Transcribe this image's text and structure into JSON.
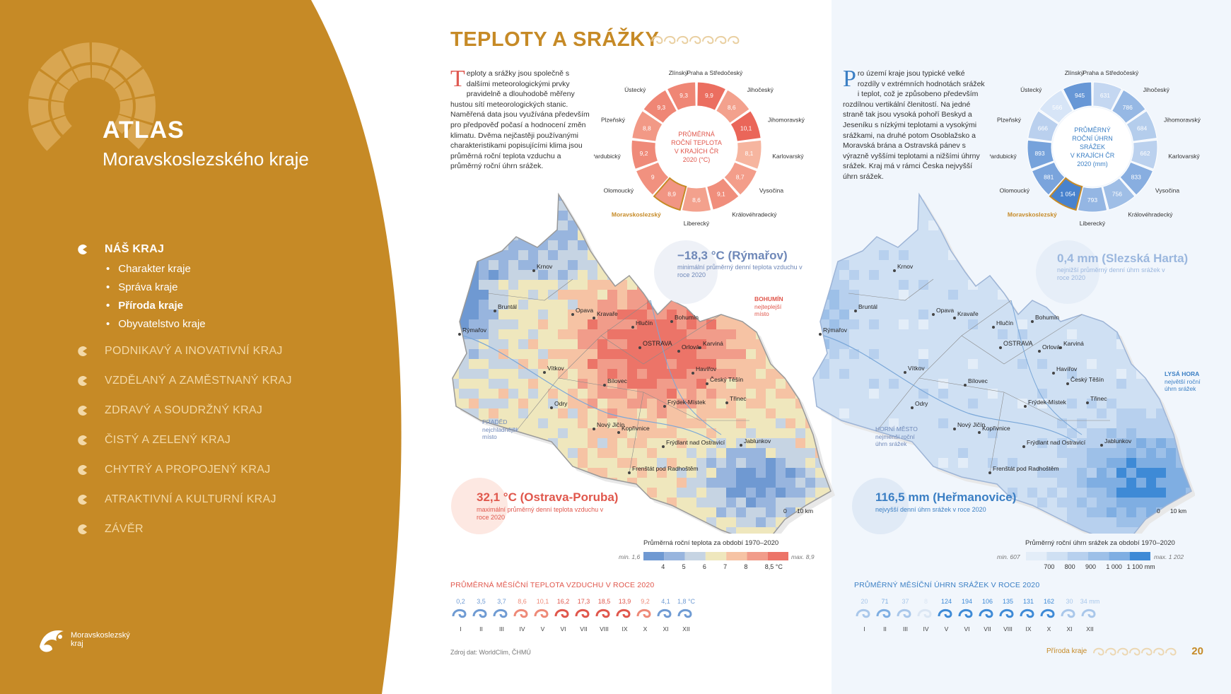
{
  "sidebar": {
    "title": "ATLAS",
    "subtitle": "Moravskoslezského kraje",
    "nav": [
      {
        "label": "NÁŠ KRAJ",
        "active": true
      },
      {
        "label": "PODNIKAVÝ A INOVATIVNÍ KRAJ"
      },
      {
        "label": "VZDĚLANÝ A ZAMĚSTNANÝ KRAJ"
      },
      {
        "label": "ZDRAVÝ A SOUDRŽNÝ KRAJ"
      },
      {
        "label": "ČISTÝ A ZELENÝ KRAJ"
      },
      {
        "label": "CHYTRÝ A PROPOJENÝ KRAJ"
      },
      {
        "label": "ATRAKTIVNÍ A KULTURNÍ KRAJ"
      },
      {
        "label": "ZÁVĚR"
      }
    ],
    "subnav": [
      "Charakter kraje",
      "Správa kraje",
      "Příroda kraje",
      "Obyvatelstvo kraje"
    ],
    "brand_line1": "Moravskoslezský",
    "brand_line2": "kraj",
    "color": "#c68a26"
  },
  "page": {
    "title": "TEPLOTY A SRÁŽKY",
    "intro_left_cap": "T",
    "intro_left": "eploty a srážky jsou společně s dalšími meteorologickými prvky pravidelně a dlouhodobě měřeny hustou sítí meteorologických stanic. Naměřená data jsou využívána především pro předpověď počasí a hodnocení změn klimatu. Dvěma nejčastěji používanými charakteristikami popisujícími klima jsou průměrná roční teplota vzduchu a průměrný roční úhrn srážek.",
    "intro_right_cap": "P",
    "intro_right": "ro území kraje jsou typické velké rozdíly v extrémních hodnotách srážek i teplot, což je způsobeno především rozdílnou vertikální členitostí. Na jedné straně tak jsou vysoká pohoří Beskyd a Jeseníku s nízkými teplotami a vysokými srážkami, na druhé potom Osoblažsko a Moravská brána a Ostravská pánev s výrazně vyššími teplotami a nižšími úhrny srážek. Kraj má v rámci Česka nejvyšší úhrn srážek.",
    "source": "Zdroj dat: WorldClim, ČHMÚ",
    "footer_label": "Příroda kraje",
    "page_number": "20"
  },
  "temp_donut": {
    "center": [
      "PRŮMĚRNÁ",
      "ROČNÍ TEPLOTA",
      "V KRAJÍCH ČR",
      "2020 (°C)"
    ],
    "regions": [
      {
        "name": "Praha a Středočeský",
        "value": "9,9"
      },
      {
        "name": "Jihočeský",
        "value": "8,6"
      },
      {
        "name": "Jihomoravský",
        "value": "10,1"
      },
      {
        "name": "Karlovarský",
        "value": "8,1"
      },
      {
        "name": "Vysočina",
        "value": "8,7"
      },
      {
        "name": "Královéhradecký",
        "value": "9,1"
      },
      {
        "name": "Liberecký",
        "value": "8,6"
      },
      {
        "name": "Moravskoslezský",
        "value": "8,9"
      },
      {
        "name": "Olomoucký",
        "value": "9"
      },
      {
        "name": "Pardubický",
        "value": "9,2"
      },
      {
        "name": "Plzeňský",
        "value": "8,8"
      },
      {
        "name": "Ústecký",
        "value": "9,3"
      },
      {
        "name": "Zlínský",
        "value": "9,3"
      }
    ]
  },
  "precip_donut": {
    "center": [
      "PRŮMĚRNÝ",
      "ROČNÍ ÚHRN",
      "SRÁŽEK",
      "V KRAJÍCH ČR",
      "2020 (mm)"
    ],
    "regions": [
      {
        "name": "Praha a Středočeský",
        "value": "631"
      },
      {
        "name": "Jihočeský",
        "value": "786"
      },
      {
        "name": "Jihomoravský",
        "value": "684"
      },
      {
        "name": "Karlovarský",
        "value": "662"
      },
      {
        "name": "Vysočina",
        "value": "833"
      },
      {
        "name": "Královéhradecký",
        "value": "756"
      },
      {
        "name": "Liberecký",
        "value": "793"
      },
      {
        "name": "Moravskoslezský",
        "value": "1 054"
      },
      {
        "name": "Olomoucký",
        "value": "881"
      },
      {
        "name": "Pardubický",
        "value": "893"
      },
      {
        "name": "Plzeňský",
        "value": "666"
      },
      {
        "name": "Ústecký",
        "value": "566"
      },
      {
        "name": "Zlínský",
        "value": "945"
      }
    ]
  },
  "temp_map": {
    "towns": [
      "Krnov",
      "Bruntál",
      "Rýmařov",
      "Opava",
      "Kravaře",
      "Hlučín",
      "Bohumín",
      "OSTRAVA",
      "Orlová",
      "Karviná",
      "Havířov",
      "Český Těšín",
      "Vítkov",
      "Bílovec",
      "Frýdek-Místek",
      "Třinec",
      "Odry",
      "Nový Jičín",
      "Kopřivnice",
      "Frýdlant nad Ostravicí",
      "Frenštát pod Radhoštěm",
      "Jablunkov"
    ],
    "min_value": "−18,3 °C (Rýmařov)",
    "min_note": "minimální průměrný denní teplota vzduchu v roce 2020",
    "max_value": "32,1 °C (Ostrava-Poruba)",
    "max_note": "maximální průměrný denní teplota vzduchu v roce 2020",
    "warm_title": "BOHUMÍN",
    "warm_note": "nejteplejší místo",
    "cold_title": "PRADĚD",
    "cold_note": "nejchladnější místo",
    "scale": "0      10 km",
    "legend_title": "Průměrná roční teplota za období 1970–2020",
    "legend_min": "min. 1,6",
    "legend_max": "max. 8,9",
    "legend_ticks": [
      "4",
      "5",
      "6",
      "7",
      "8",
      "8,5 °C"
    ],
    "legend_colors": [
      "#6f99d2",
      "#98b5de",
      "#c6d4e3",
      "#efe7bd",
      "#f6c3a4",
      "#f19c8a",
      "#ec7468"
    ]
  },
  "precip_map": {
    "towns": [
      "Krnov",
      "Bruntál",
      "Rýmařov",
      "Opava",
      "Kravaře",
      "Hlučín",
      "Bohumín",
      "OSTRAVA",
      "Orlová",
      "Karviná",
      "Havířov",
      "Český Těšín",
      "Vítkov",
      "Bílovec",
      "Frýdek-Místek",
      "Třinec",
      "Odry",
      "Nový Jičín",
      "Kopřivnice",
      "Frýdlant nad Ostravicí",
      "Frenštát pod Radhoštěm",
      "Jablunkov"
    ],
    "min_value": "0,4 mm (Slezská Harta)",
    "min_note": "nejnižší průměrný denní úhrn srážek v roce 2020",
    "max_value": "116,5 mm (Heřmanovice)",
    "max_note": "nejvyšší denní úhrn srážek v roce 2020",
    "wet_title": "LYSÁ HORA",
    "wet_note": "největší roční úhrn srážek",
    "dry_title": "HORNÍ MĚSTO",
    "dry_note": "nejmenší roční úhrn srážek",
    "scale": "0      10 km",
    "legend_title": "Průměrný roční úhrn srážek za období 1970–2020",
    "legend_min": "min. 607",
    "legend_max": "max. 1 202",
    "legend_ticks": [
      "700",
      "800",
      "900",
      "1 000",
      "1 100 mm"
    ],
    "legend_colors": [
      "#e3edf8",
      "#cfe0f3",
      "#b7d0ee",
      "#9dc0e8",
      "#7faee2",
      "#3e8ad6"
    ]
  },
  "monthly_temp": {
    "title": "PRŮMĚRNÁ MĚSÍČNÍ TEPLOTA VZDUCHU V ROCE 2020",
    "values": [
      "0,2",
      "3,5",
      "3,7",
      "8,6",
      "10,1",
      "16,2",
      "17,3",
      "18,5",
      "13,9",
      "9,2",
      "4,1",
      "1,8 °C"
    ],
    "months": [
      "I",
      "II",
      "III",
      "IV",
      "V",
      "VI",
      "VII",
      "VIII",
      "IX",
      "X",
      "XI",
      "XII"
    ]
  },
  "monthly_precip": {
    "title": "PRŮMĚRNÝ MĚSÍČNÍ ÚHRN SRÁŽEK V ROCE 2020",
    "values": [
      "20",
      "71",
      "37",
      "8",
      "124",
      "194",
      "106",
      "135",
      "131",
      "162",
      "30",
      "34 mm"
    ],
    "months": [
      "I",
      "II",
      "III",
      "IV",
      "V",
      "VI",
      "VII",
      "VIII",
      "IX",
      "X",
      "XI",
      "XII"
    ]
  }
}
